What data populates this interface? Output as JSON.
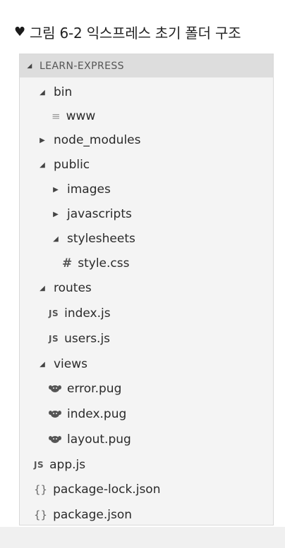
{
  "caption": {
    "bullet": "♥",
    "text": "그림 6-2 익스프레스 초기 폴더 구조"
  },
  "explorer": {
    "header": "LEARN-EXPRESS",
    "items": [
      {
        "label": "bin",
        "icon": "folder-open"
      },
      {
        "label": "www",
        "icon": "text-file"
      },
      {
        "label": "node_modules",
        "icon": "folder-collapsed"
      },
      {
        "label": "public",
        "icon": "folder-open"
      },
      {
        "label": "images",
        "icon": "folder-collapsed"
      },
      {
        "label": "javascripts",
        "icon": "folder-collapsed"
      },
      {
        "label": "stylesheets",
        "icon": "folder-open"
      },
      {
        "label": "style.css",
        "icon": "css-file",
        "glyph": "#"
      },
      {
        "label": "routes",
        "icon": "folder-open"
      },
      {
        "label": "index.js",
        "icon": "js-file",
        "glyph": "JS"
      },
      {
        "label": "users.js",
        "icon": "js-file",
        "glyph": "JS"
      },
      {
        "label": "views",
        "icon": "folder-open"
      },
      {
        "label": "error.pug",
        "icon": "pug-file"
      },
      {
        "label": "index.pug",
        "icon": "pug-file"
      },
      {
        "label": "layout.pug",
        "icon": "pug-file"
      },
      {
        "label": "app.js",
        "icon": "js-file",
        "glyph": "JS"
      },
      {
        "label": "package-lock.json",
        "icon": "json-file",
        "glyph": "{}"
      },
      {
        "label": "package.json",
        "icon": "json-file",
        "glyph": "{}"
      }
    ]
  }
}
